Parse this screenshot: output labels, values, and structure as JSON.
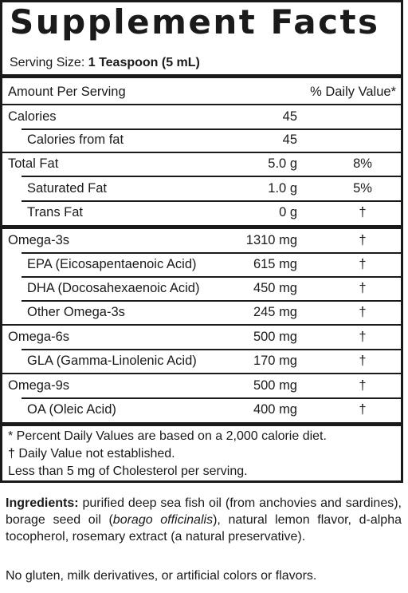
{
  "title": "Supplement Facts",
  "serving": {
    "label": "Serving Size:",
    "value": "1 Teaspoon (5 mL)"
  },
  "header": {
    "amount": "Amount Per Serving",
    "dv": "% Daily Value*"
  },
  "rows": [
    {
      "label": "Calories",
      "amount": "45",
      "dv": ""
    },
    {
      "label": "Calories from fat",
      "amount": "45",
      "dv": ""
    },
    {
      "label": "Total Fat",
      "amount": "5.0 g",
      "dv": "8%"
    },
    {
      "label": "Saturated Fat",
      "amount": "1.0 g",
      "dv": "5%"
    },
    {
      "label": "Trans Fat",
      "amount": "0 g",
      "dv": "†"
    },
    {
      "label": "Omega-3s",
      "amount": "1310 mg",
      "dv": "†"
    },
    {
      "label": "EPA (Eicosapentaenoic Acid)",
      "amount": "615 mg",
      "dv": "†"
    },
    {
      "label": "DHA (Docosahexaenoic Acid)",
      "amount": "450 mg",
      "dv": "†"
    },
    {
      "label": "Other Omega-3s",
      "amount": "245 mg",
      "dv": "†"
    },
    {
      "label": "Omega-6s",
      "amount": "500 mg",
      "dv": "†"
    },
    {
      "label": "GLA (Gamma-Linolenic Acid)",
      "amount": "170 mg",
      "dv": "†"
    },
    {
      "label": "Omega-9s",
      "amount": "500 mg",
      "dv": "†"
    },
    {
      "label": "OA (Oleic Acid)",
      "amount": "400 mg",
      "dv": "†"
    }
  ],
  "footnotes": [
    "*  Percent Daily Values are based on a 2,000 calorie diet.",
    "†  Daily Value not established.",
    "Less than 5 mg of Cholesterol per serving."
  ],
  "ingredients": {
    "label": "Ingredients:",
    "text_1": " purified deep sea fish oil (from anchovies and sardines), borage seed oil (",
    "italic": "borago officinalis",
    "text_2": "), natural lemon flavor, d-alpha tocopherol, rosemary extract (a natural preservative)."
  },
  "note": "No gluten, milk derivatives, or artificial colors or flavors."
}
